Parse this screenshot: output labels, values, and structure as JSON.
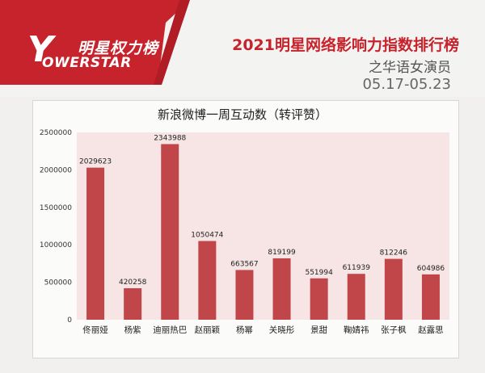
{
  "header": {
    "logo_cn": "明星权力榜",
    "logo_en": "OWERSTAR",
    "logo_mark": "Y",
    "title": "2021明星网络影响力指数排行榜",
    "subtitle": "之华语女演员",
    "date_range": "05.17-05.23",
    "brand_color": "#c7232c"
  },
  "chart_data": {
    "type": "bar",
    "title": "新浪微博一周互动数（转评赞）",
    "xlabel": "",
    "ylabel": "",
    "categories": [
      "佟丽娅",
      "杨紫",
      "迪丽热巴",
      "赵丽颖",
      "杨幂",
      "关晓彤",
      "景甜",
      "鞠婧祎",
      "张子枫",
      "赵露思"
    ],
    "values": [
      2029623,
      420258,
      2343988,
      1050474,
      663567,
      819199,
      551994,
      611939,
      812246,
      604986
    ],
    "ylim": [
      0,
      2500000
    ],
    "yticks": [
      "0",
      "500000",
      "1000000",
      "1500000",
      "2000000",
      "2500000"
    ],
    "grid": false,
    "bar_color": "#c0464a",
    "plot_bg": "#f6e5e4"
  }
}
